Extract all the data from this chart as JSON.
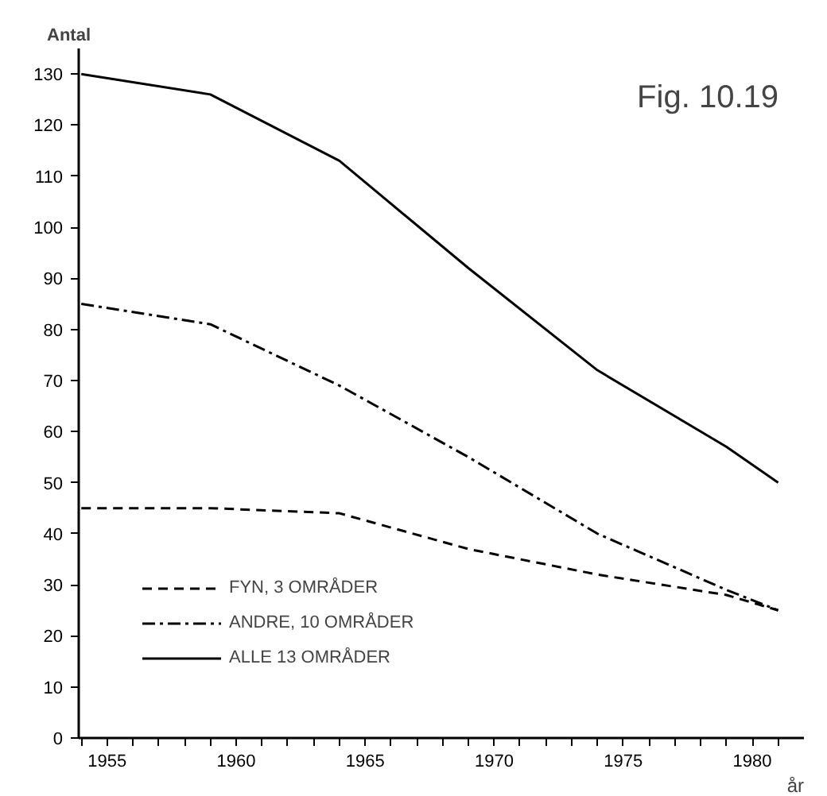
{
  "chart_data": {
    "type": "line",
    "title": "Fig. 10.19",
    "ylabel": "Antal",
    "xlabel": "år",
    "xlim": [
      1953.9,
      1982
    ],
    "ylim": [
      0,
      135
    ],
    "xticks": [
      {
        "value": 1954,
        "label": null
      },
      1955,
      {
        "value": 1956,
        "label": null
      },
      {
        "value": 1957,
        "label": null
      },
      {
        "value": 1958,
        "label": null
      },
      {
        "value": 1959,
        "label": null
      },
      1960,
      {
        "value": 1961,
        "label": null
      },
      {
        "value": 1962,
        "label": null
      },
      {
        "value": 1963,
        "label": null
      },
      {
        "value": 1964,
        "label": null
      },
      1965,
      {
        "value": 1966,
        "label": null
      },
      {
        "value": 1967,
        "label": null
      },
      {
        "value": 1968,
        "label": null
      },
      {
        "value": 1969,
        "label": null
      },
      1970,
      {
        "value": 1971,
        "label": null
      },
      {
        "value": 1972,
        "label": null
      },
      {
        "value": 1973,
        "label": null
      },
      {
        "value": 1974,
        "label": null
      },
      1975,
      {
        "value": 1976,
        "label": null
      },
      {
        "value": 1977,
        "label": null
      },
      {
        "value": 1978,
        "label": null
      },
      {
        "value": 1979,
        "label": null
      },
      1980,
      {
        "value": 1981,
        "label": null
      }
    ],
    "yticks": [
      0,
      10,
      20,
      30,
      40,
      50,
      60,
      70,
      80,
      90,
      100,
      110,
      120,
      130
    ],
    "grid": false,
    "legend": "bottom left",
    "marker": "none",
    "x": [
      1954,
      1959,
      1964,
      1969,
      1974,
      1979,
      1981
    ],
    "series": [
      {
        "name": "FYN, 3 OMRÅDER",
        "color": "#000000",
        "line_style": "dashed",
        "values": [
          45,
          45,
          44,
          37,
          32,
          28,
          25
        ]
      },
      {
        "name": "ANDRE, 10 OMRÅDER",
        "color": "#000000",
        "line_style": "dashdot",
        "values": [
          85,
          81,
          69,
          55,
          40,
          29,
          25
        ]
      },
      {
        "name": "ALLE 13 OMRÅDER",
        "color": "#000000",
        "line_style": "solid",
        "values": [
          130,
          126,
          113,
          92,
          72,
          57,
          50
        ]
      }
    ]
  }
}
